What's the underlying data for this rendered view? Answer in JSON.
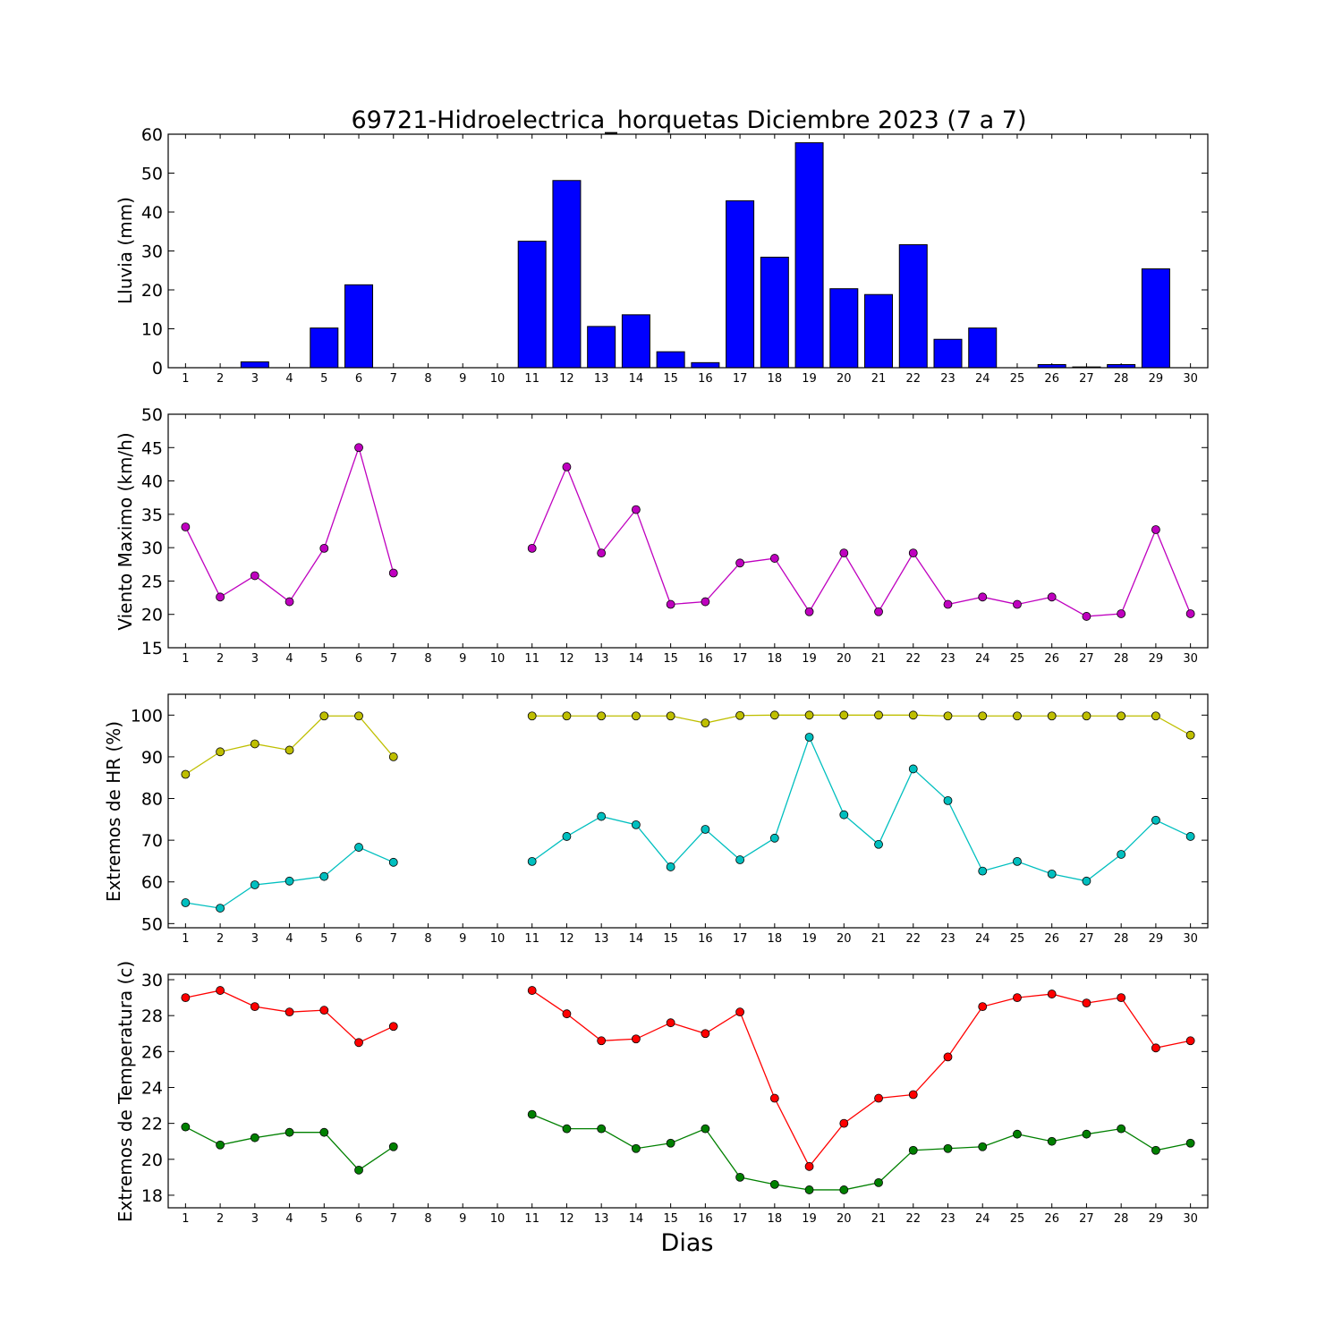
{
  "chart_data": [
    {
      "type": "bar",
      "title": "69721-Hidroelectrica_horquetas Diciembre 2023  (7 a 7)",
      "ylabel": "Lluvia (mm)",
      "xlabel": "",
      "x": [
        1,
        2,
        3,
        4,
        5,
        6,
        7,
        8,
        9,
        10,
        11,
        12,
        13,
        14,
        15,
        16,
        17,
        18,
        19,
        20,
        21,
        22,
        23,
        24,
        25,
        26,
        27,
        28,
        29,
        30
      ],
      "ylim": [
        0,
        60
      ],
      "yticks": [
        0,
        10,
        20,
        30,
        40,
        50,
        60
      ],
      "series": [
        {
          "color": "#0000ff",
          "values": [
            0,
            0,
            1.5,
            0,
            10.2,
            21.3,
            0,
            null,
            null,
            null,
            32.5,
            48.1,
            10.6,
            13.6,
            4.1,
            1.3,
            42.9,
            28.4,
            57.8,
            20.3,
            18.8,
            31.6,
            7.3,
            10.2,
            0,
            0.8,
            0.2,
            0.8,
            25.4,
            0
          ]
        }
      ]
    },
    {
      "type": "line",
      "ylabel": "Viento Maximo (km/h)",
      "xlabel": "",
      "x": [
        1,
        2,
        3,
        4,
        5,
        6,
        7,
        8,
        9,
        10,
        11,
        12,
        13,
        14,
        15,
        16,
        17,
        18,
        19,
        20,
        21,
        22,
        23,
        24,
        25,
        26,
        27,
        28,
        29,
        30
      ],
      "ylim": [
        15,
        50
      ],
      "yticks": [
        15,
        20,
        25,
        30,
        35,
        40,
        45,
        50
      ],
      "series": [
        {
          "color": "#bf00bf",
          "values": [
            33.1,
            22.6,
            25.8,
            21.9,
            29.9,
            45.0,
            26.2,
            null,
            null,
            null,
            29.9,
            42.1,
            29.2,
            35.7,
            21.5,
            21.9,
            27.7,
            28.4,
            20.4,
            29.2,
            20.4,
            29.2,
            21.5,
            22.6,
            21.5,
            22.6,
            19.7,
            20.1,
            32.7,
            20.1
          ]
        }
      ]
    },
    {
      "type": "line",
      "ylabel": "Extremos de HR (%)",
      "xlabel": "",
      "x": [
        1,
        2,
        3,
        4,
        5,
        6,
        7,
        8,
        9,
        10,
        11,
        12,
        13,
        14,
        15,
        16,
        17,
        18,
        19,
        20,
        21,
        22,
        23,
        24,
        25,
        26,
        27,
        28,
        29,
        30
      ],
      "ylim": [
        49,
        105
      ],
      "yticks": [
        50,
        60,
        70,
        80,
        90,
        100
      ],
      "series": [
        {
          "color": "#bfbf00",
          "values": [
            85.8,
            91.2,
            93.1,
            91.6,
            99.8,
            99.8,
            90.0,
            null,
            null,
            null,
            99.8,
            99.8,
            99.8,
            99.8,
            99.8,
            98.1,
            99.9,
            100,
            100,
            100,
            100,
            100,
            99.8,
            99.8,
            99.8,
            99.8,
            99.8,
            99.8,
            99.8,
            95.2
          ]
        },
        {
          "color": "#00bfbf",
          "values": [
            55.0,
            53.7,
            59.3,
            60.2,
            61.3,
            68.3,
            64.7,
            null,
            null,
            null,
            64.9,
            70.9,
            75.7,
            73.7,
            63.6,
            72.6,
            65.3,
            70.5,
            94.7,
            76.1,
            69.0,
            87.1,
            79.5,
            62.6,
            64.9,
            61.9,
            60.2,
            66.6,
            74.8,
            70.9
          ]
        }
      ]
    },
    {
      "type": "line",
      "ylabel": "Extremos de Temperatura (c)",
      "xlabel": "Dias",
      "x": [
        1,
        2,
        3,
        4,
        5,
        6,
        7,
        8,
        9,
        10,
        11,
        12,
        13,
        14,
        15,
        16,
        17,
        18,
        19,
        20,
        21,
        22,
        23,
        24,
        25,
        26,
        27,
        28,
        29,
        30
      ],
      "ylim": [
        17.3,
        30.3
      ],
      "yticks": [
        18,
        20,
        22,
        24,
        26,
        28,
        30
      ],
      "series": [
        {
          "color": "#ff0000",
          "values": [
            29.0,
            29.4,
            28.5,
            28.2,
            28.3,
            26.5,
            27.4,
            null,
            null,
            null,
            29.4,
            28.1,
            26.6,
            26.7,
            27.6,
            27.0,
            28.2,
            23.4,
            19.6,
            22.0,
            23.4,
            23.6,
            25.7,
            28.5,
            29.0,
            29.2,
            28.7,
            29.0,
            26.2,
            26.6
          ]
        },
        {
          "color": "#008000",
          "values": [
            21.8,
            20.8,
            21.2,
            21.5,
            21.5,
            19.4,
            20.7,
            null,
            null,
            null,
            22.5,
            21.7,
            21.7,
            20.6,
            20.9,
            21.7,
            19.0,
            18.6,
            18.3,
            18.3,
            18.7,
            20.5,
            20.6,
            20.7,
            21.4,
            21.0,
            21.4,
            21.7,
            20.5,
            20.9
          ]
        }
      ]
    }
  ]
}
